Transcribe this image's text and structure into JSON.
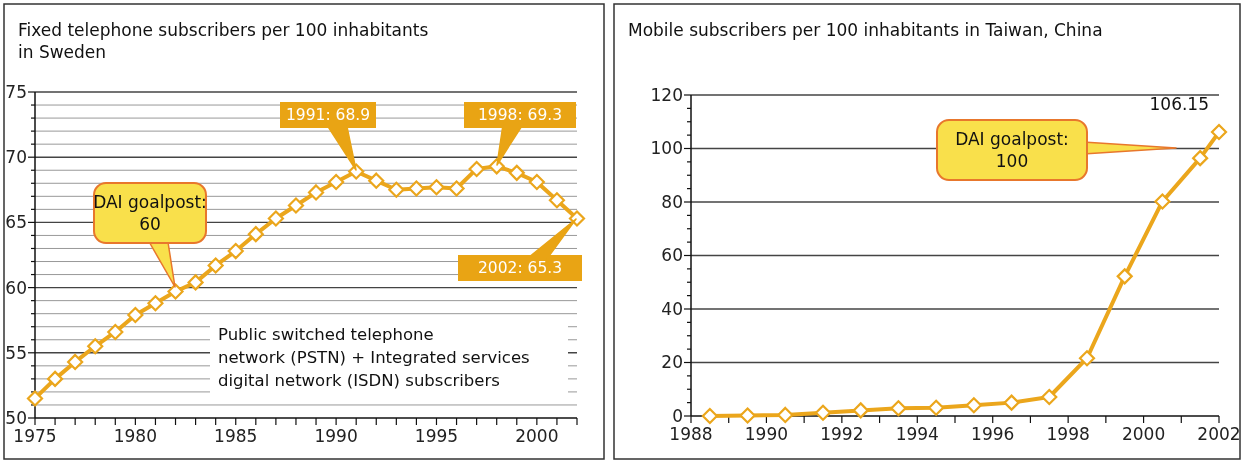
{
  "chart_data": [
    {
      "type": "line",
      "title": "Fixed telephone subscribers per 100 inhabitants\nin Sweden",
      "x": [
        1975,
        1976,
        1977,
        1978,
        1979,
        1980,
        1981,
        1982,
        1983,
        1984,
        1985,
        1986,
        1987,
        1988,
        1989,
        1990,
        1991,
        1992,
        1993,
        1994,
        1995,
        1996,
        1997,
        1998,
        1999,
        2000,
        2001,
        2002
      ],
      "series": [
        {
          "color": "#eba61c",
          "values": [
            51.5,
            53.0,
            54.3,
            55.5,
            56.6,
            57.9,
            58.8,
            59.7,
            60.4,
            61.7,
            62.8,
            64.1,
            65.3,
            66.3,
            67.3,
            68.1,
            68.9,
            68.2,
            67.5,
            67.6,
            67.7,
            67.6,
            69.1,
            69.3,
            68.8,
            68.1,
            66.7,
            65.3
          ]
        }
      ],
      "xlim": [
        1975,
        2002
      ],
      "xticks": [
        1975,
        {
          "value": 1976,
          "label": null
        },
        {
          "value": 1977,
          "label": null
        },
        {
          "value": 1978,
          "label": null
        },
        {
          "value": 1979,
          "label": null
        },
        1980,
        {
          "value": 1981,
          "label": null
        },
        {
          "value": 1982,
          "label": null
        },
        {
          "value": 1983,
          "label": null
        },
        {
          "value": 1984,
          "label": null
        },
        1985,
        {
          "value": 1986,
          "label": null
        },
        {
          "value": 1987,
          "label": null
        },
        {
          "value": 1988,
          "label": null
        },
        {
          "value": 1989,
          "label": null
        },
        1990,
        {
          "value": 1991,
          "label": null
        },
        {
          "value": 1992,
          "label": null
        },
        {
          "value": 1993,
          "label": null
        },
        {
          "value": 1994,
          "label": null
        },
        1995,
        {
          "value": 1996,
          "label": null
        },
        {
          "value": 1997,
          "label": null
        },
        {
          "value": 1998,
          "label": null
        },
        {
          "value": 1999,
          "label": null
        },
        2000,
        {
          "value": 2001,
          "label": null
        },
        {
          "value": 2002,
          "label": null
        }
      ],
      "ylim": [
        50,
        75
      ],
      "yticks": [
        50,
        {
          "value": 51,
          "label": null
        },
        {
          "value": 52,
          "label": null
        },
        {
          "value": 53,
          "label": null
        },
        {
          "value": 54,
          "label": null
        },
        55,
        {
          "value": 56,
          "label": null
        },
        {
          "value": 57,
          "label": null
        },
        {
          "value": 58,
          "label": null
        },
        {
          "value": 59,
          "label": null
        },
        60,
        {
          "value": 61,
          "label": null
        },
        {
          "value": 62,
          "label": null
        },
        {
          "value": 63,
          "label": null
        },
        {
          "value": 64,
          "label": null
        },
        65,
        {
          "value": 66,
          "label": null
        },
        {
          "value": 67,
          "label": null
        },
        {
          "value": 68,
          "label": null
        },
        {
          "value": 69,
          "label": null
        },
        70,
        {
          "value": 71,
          "label": null
        },
        {
          "value": 72,
          "label": null
        },
        {
          "value": 73,
          "label": null
        },
        {
          "value": 74,
          "label": null
        },
        75
      ],
      "grid": "y",
      "marker": "diamond",
      "annotations": [
        "DAI goalpost:\n60",
        "1991: 68.9",
        "1998: 69.3",
        "2002: 65.3",
        "Public switched telephone\nnetwork (PSTN) + Integrated services\ndigital network (ISDN) subscribers"
      ]
    },
    {
      "type": "line",
      "title": "Mobile subscribers per 100 inhabitants in Taiwan, China",
      "x": [
        1988.5,
        1989.5,
        1990.5,
        1991.5,
        1992.5,
        1993.5,
        1994.5,
        1995.5,
        1996.5,
        1997.5,
        1998.5,
        1999.5,
        2000.5,
        2001.5,
        2002
      ],
      "series": [
        {
          "color": "#eba61c",
          "values": [
            0,
            0.2,
            0.4,
            1.2,
            2.1,
            2.9,
            3.1,
            4.0,
            5.0,
            7.1,
            21.6,
            52.2,
            80.2,
            96.4,
            106.15
          ],
          "value_labels": [
            null,
            null,
            null,
            null,
            null,
            null,
            null,
            null,
            null,
            null,
            null,
            null,
            null,
            null,
            "106.15"
          ]
        }
      ],
      "xlim": [
        1988,
        2002
      ],
      "xticks": [
        1988,
        {
          "value": 1989,
          "label": null
        },
        1990,
        {
          "value": 1991,
          "label": null
        },
        1992,
        {
          "value": 1993,
          "label": null
        },
        1994,
        {
          "value": 1995,
          "label": null
        },
        1996,
        {
          "value": 1997,
          "label": null
        },
        1998,
        {
          "value": 1999,
          "label": null
        },
        2000,
        {
          "value": 2001,
          "label": null
        },
        2002
      ],
      "ylim": [
        0,
        120
      ],
      "yticks": [
        0,
        {
          "value": 5,
          "label": null
        },
        {
          "value": 10,
          "label": null
        },
        {
          "value": 15,
          "label": null
        },
        20,
        {
          "value": 25,
          "label": null
        },
        {
          "value": 30,
          "label": null
        },
        {
          "value": 35,
          "label": null
        },
        40,
        {
          "value": 45,
          "label": null
        },
        {
          "value": 50,
          "label": null
        },
        {
          "value": 55,
          "label": null
        },
        60,
        {
          "value": 65,
          "label": null
        },
        {
          "value": 70,
          "label": null
        },
        {
          "value": 75,
          "label": null
        },
        80,
        {
          "value": 85,
          "label": null
        },
        {
          "value": 90,
          "label": null
        },
        {
          "value": 95,
          "label": null
        },
        100,
        {
          "value": 105,
          "label": null
        },
        {
          "value": 110,
          "label": null
        },
        {
          "value": 115,
          "label": null
        },
        120
      ],
      "grid": "y",
      "marker": "diamond",
      "annotations": [
        "DAI goalpost:\n100"
      ]
    }
  ]
}
